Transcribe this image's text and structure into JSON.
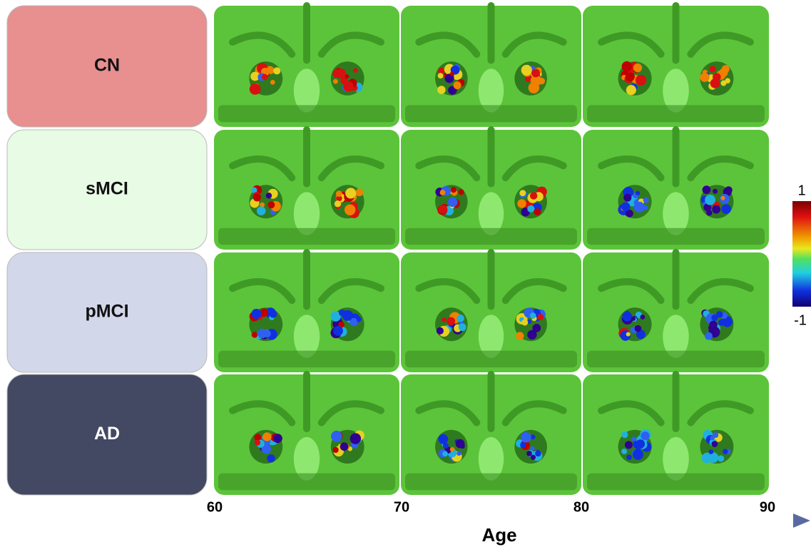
{
  "groups": [
    "CN",
    "sMCI",
    "pMCI",
    "AD"
  ],
  "age_axis": {
    "label": "Age",
    "ticks": [
      "60",
      "70",
      "80",
      "90"
    ]
  },
  "colorbar": {
    "max_label": "1",
    "min_label": "-1"
  }
}
